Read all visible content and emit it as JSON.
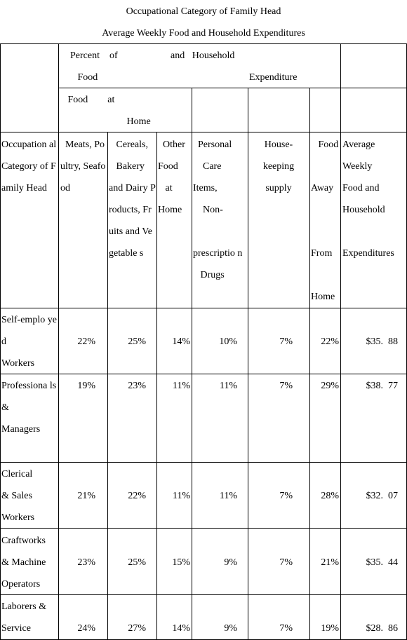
{
  "title_line_1": "Occupational Category of Family Head",
  "title_line_2": "Average Weekly Food and Household Expenditures",
  "header": {
    "group_percent_of_food": "Percent    of\n   Food",
    "group_and_household": "and   Household",
    "group_expenditure": "Expenditure",
    "subgroup_food_at_home": "   Food        at\n                           Home",
    "col_occupation": "Occupation al Category of Family Head",
    "col_meats": "  Meats, Poultry, Seafood",
    "col_cereals": "   Cereals,\n   Bakery\nand Dairy Products, Fruits and Vegetable s",
    "col_other_food": "  Other Food\n   at\nHome",
    "col_personal_care": "  Personal\n    Care\nItems,\n    Non-\n\nprescriptio n\n   Drugs",
    "col_housekeeping": "House-\nkeeping\nsupply",
    "col_food_away": "   Food\n\nAway\n\n\nFrom\n\nHome",
    "col_average": "Average\nWeekly\nFood and\nHousehold\n\nExpenditures"
  },
  "rows": [
    {
      "category": "Self-emplo yed\nWorkers",
      "meats": "22%",
      "cereals": "25%",
      "other_food": "14%",
      "personal_care": "10%",
      "housekeeping": "7%",
      "food_away": "22%",
      "average": "$35.  88"
    },
    {
      "category": "Professiona ls\n&\nManagers",
      "meats": "19%",
      "cereals": "23%",
      "other_food": "11%",
      "personal_care": "11%",
      "housekeeping": "7%",
      "food_away": "29%",
      "average": "$38.  77"
    },
    {
      "category": "Clerical\n& Sales\nWorkers",
      "meats": "21%",
      "cereals": "22%",
      "other_food": "11%",
      "personal_care": "11%",
      "housekeeping": "7%",
      "food_away": "28%",
      "average": "$32.  07"
    },
    {
      "category": "Craftworks\n& Machine\nOperators",
      "meats": "23%",
      "cereals": "25%",
      "other_food": "15%",
      "personal_care": "9%",
      "housekeeping": "7%",
      "food_away": "21%",
      "average": "$35.  44"
    },
    {
      "category": "Laborers &\nService",
      "meats": "24%",
      "cereals": "27%",
      "other_food": "14%",
      "personal_care": "9%",
      "housekeeping": "7%",
      "food_away": "19%",
      "average": "$28.  86"
    }
  ]
}
